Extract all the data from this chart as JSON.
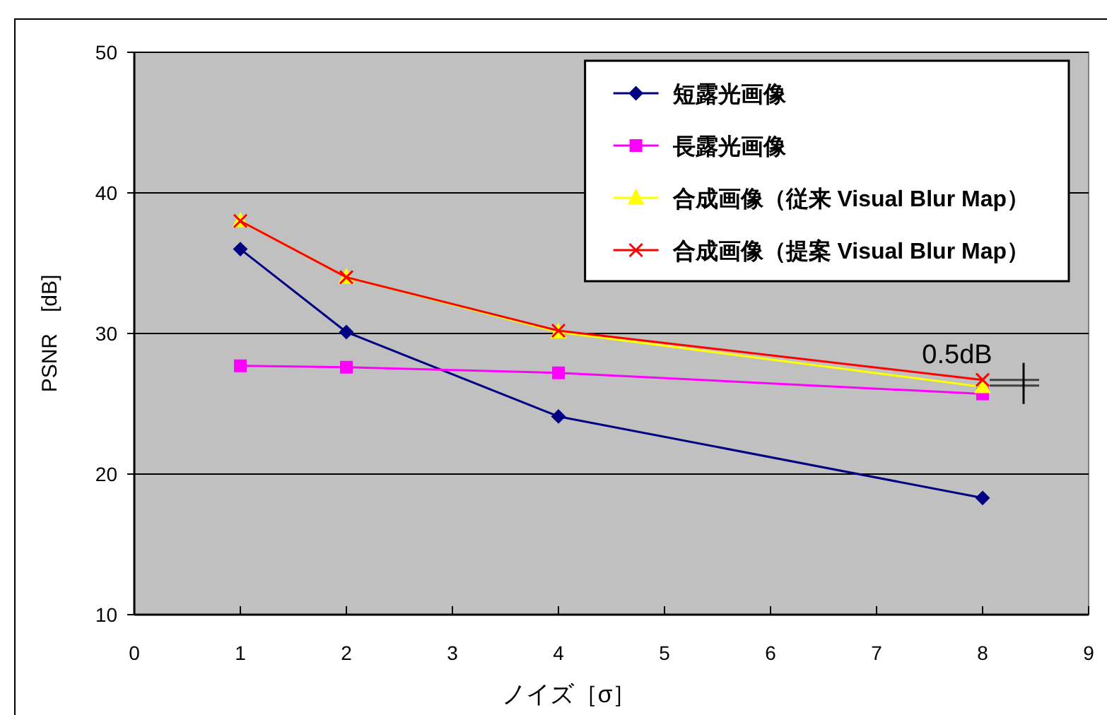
{
  "chart_data": {
    "type": "line",
    "xlabel": "ノイズ［σ］",
    "ylabel": "PSNR　[dB]",
    "x": [
      1,
      2,
      4,
      8
    ],
    "series": [
      {
        "name": "短露光画像",
        "color": "#000080",
        "marker": "diamond",
        "values": [
          36.0,
          30.1,
          24.1,
          18.3
        ]
      },
      {
        "name": "長露光画像",
        "color": "#ff00ff",
        "marker": "square",
        "values": [
          27.7,
          27.6,
          27.2,
          25.7
        ]
      },
      {
        "name": "合成画像（従来 Visual Blur Map）",
        "color": "#ffff00",
        "marker": "triangle",
        "values": [
          38.0,
          34.0,
          30.1,
          26.2
        ]
      },
      {
        "name": "合成画像（提案 Visual Blur Map）",
        "color": "#ff0000",
        "marker": "cross",
        "values": [
          38.0,
          34.0,
          30.2,
          26.7
        ]
      }
    ],
    "xlim": [
      0,
      9
    ],
    "ylim": [
      10,
      50
    ],
    "xticks": [
      0,
      1,
      2,
      3,
      4,
      5,
      6,
      7,
      8,
      9
    ],
    "yticks": [
      10,
      20,
      30,
      40,
      50
    ],
    "grid": "y",
    "legend": "top right",
    "line_style": "solid",
    "annotations": [
      {
        "text": "0.5dB",
        "x": 8,
        "y": 26.7
      }
    ]
  }
}
